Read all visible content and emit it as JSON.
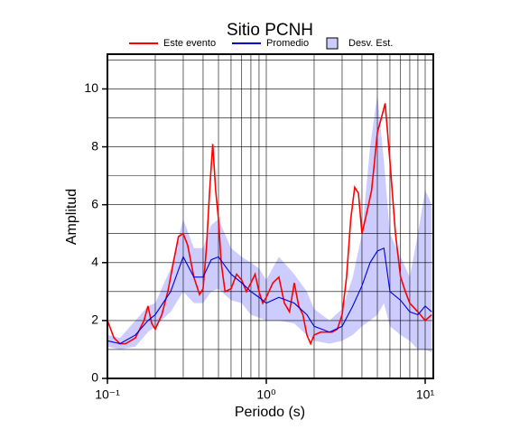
{
  "chart_data": {
    "type": "line",
    "title": "Sitio PCNH",
    "xlabel": "Periodo (s)",
    "ylabel": "Amplitud",
    "xscale": "log",
    "xlim": [
      0.1,
      11.25
    ],
    "ylim": [
      0,
      11.2
    ],
    "xticks": [
      {
        "value": 0.1,
        "label": "10⁻¹"
      },
      {
        "value": 1,
        "label": "10⁰"
      },
      {
        "value": 10,
        "label": "10¹"
      }
    ],
    "yticks": [
      0,
      2,
      4,
      6,
      8,
      10
    ],
    "x_grid_lines": [
      0.2,
      0.3,
      0.4,
      0.5,
      0.6,
      0.7,
      0.8,
      0.9,
      1,
      2,
      3,
      4,
      5,
      6,
      7,
      8,
      9,
      10
    ],
    "y_grid_lines": [
      1,
      2,
      3,
      4,
      5,
      6,
      7,
      8,
      9,
      10,
      11
    ],
    "legend": "top",
    "series": [
      {
        "name": "Este evento",
        "color": "#ff0000",
        "x": [
          0.1,
          0.11,
          0.12,
          0.13,
          0.14,
          0.15,
          0.17,
          0.18,
          0.19,
          0.2,
          0.22,
          0.24,
          0.26,
          0.28,
          0.3,
          0.32,
          0.35,
          0.38,
          0.4,
          0.42,
          0.44,
          0.46,
          0.48,
          0.5,
          0.52,
          0.55,
          0.6,
          0.65,
          0.7,
          0.75,
          0.8,
          0.85,
          0.9,
          0.95,
          1.0,
          1.1,
          1.2,
          1.3,
          1.4,
          1.5,
          1.6,
          1.7,
          1.8,
          1.9,
          2.0,
          2.2,
          2.4,
          2.6,
          2.8,
          3.0,
          3.2,
          3.4,
          3.6,
          3.8,
          4.0,
          4.2,
          4.4,
          4.6,
          4.8,
          5.0,
          5.3,
          5.6,
          6.0,
          6.5,
          7.0,
          7.5,
          8.0,
          9.0,
          10,
          11
        ],
        "values": [
          2.0,
          1.4,
          1.2,
          1.2,
          1.3,
          1.4,
          2.0,
          2.5,
          1.9,
          1.7,
          2.2,
          3.0,
          4.0,
          4.9,
          5.0,
          4.6,
          3.5,
          2.9,
          3.1,
          4.5,
          6.5,
          8.1,
          6.5,
          5.5,
          4.0,
          3.0,
          3.1,
          3.6,
          3.4,
          3.0,
          3.3,
          3.6,
          3.0,
          2.6,
          2.8,
          3.3,
          3.5,
          2.6,
          2.3,
          3.3,
          2.5,
          2.2,
          1.5,
          1.2,
          1.5,
          1.6,
          1.6,
          1.6,
          1.7,
          2.2,
          3.5,
          5.5,
          6.6,
          6.4,
          5.0,
          5.5,
          6.0,
          6.5,
          7.5,
          8.5,
          9.0,
          9.5,
          7.5,
          5.0,
          3.5,
          3.0,
          2.6,
          2.3,
          2.0,
          2.2
        ]
      },
      {
        "name": "Promedio",
        "color": "#0000dd",
        "x": [
          0.1,
          0.12,
          0.15,
          0.18,
          0.2,
          0.25,
          0.3,
          0.35,
          0.4,
          0.45,
          0.5,
          0.6,
          0.7,
          0.8,
          0.9,
          1.0,
          1.2,
          1.5,
          1.8,
          2.0,
          2.5,
          3.0,
          3.5,
          4.0,
          4.5,
          5.0,
          5.5,
          6.0,
          7.0,
          8.0,
          9.0,
          10,
          11
        ],
        "values": [
          1.3,
          1.2,
          1.5,
          2.0,
          2.2,
          3.0,
          4.2,
          3.5,
          3.5,
          4.1,
          4.2,
          3.6,
          3.3,
          3.0,
          2.8,
          2.6,
          2.8,
          2.6,
          2.2,
          1.8,
          1.6,
          1.8,
          2.5,
          3.2,
          4.0,
          4.4,
          4.5,
          3.0,
          2.7,
          2.3,
          2.2,
          2.5,
          2.3
        ]
      }
    ],
    "band": {
      "name": "Desv. Est.",
      "color": "#ccccff",
      "x": [
        0.1,
        0.12,
        0.15,
        0.18,
        0.2,
        0.25,
        0.3,
        0.35,
        0.4,
        0.45,
        0.5,
        0.6,
        0.7,
        0.8,
        0.9,
        1.0,
        1.2,
        1.5,
        1.8,
        2.0,
        2.5,
        3.0,
        3.5,
        4.0,
        4.5,
        5.0,
        5.5,
        6.0,
        7.0,
        8.0,
        9.0,
        10,
        11
      ],
      "lower": [
        1.1,
        1.0,
        1.1,
        1.6,
        1.8,
        2.3,
        3.0,
        2.6,
        2.6,
        3.0,
        3.1,
        2.7,
        2.6,
        2.2,
        2.1,
        2.0,
        2.0,
        1.9,
        1.5,
        1.3,
        1.2,
        1.3,
        1.5,
        1.8,
        2.0,
        2.2,
        2.6,
        1.8,
        1.5,
        1.3,
        1.0,
        1.0,
        0.9
      ],
      "upper": [
        1.5,
        1.4,
        2.0,
        2.5,
        2.6,
        3.8,
        5.5,
        4.5,
        4.5,
        5.3,
        5.5,
        4.5,
        4.2,
        4.0,
        3.8,
        3.4,
        4.2,
        3.6,
        3.0,
        2.4,
        2.0,
        2.4,
        3.5,
        5.0,
        8.0,
        9.8,
        7.5,
        5.0,
        4.2,
        3.5,
        5.0,
        6.5,
        6.0
      ]
    }
  }
}
